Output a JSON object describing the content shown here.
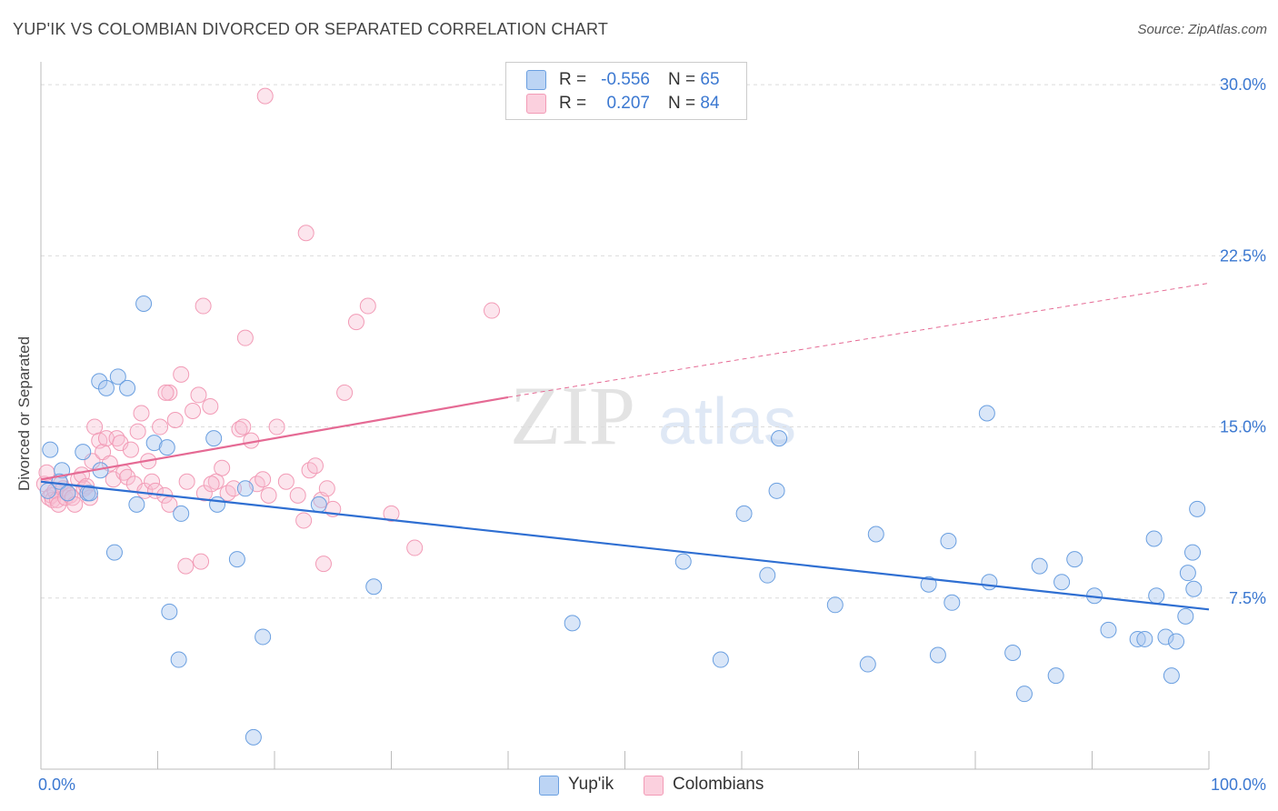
{
  "title": "YUP'IK VS COLOMBIAN DIVORCED OR SEPARATED CORRELATION CHART",
  "source": "Source: ZipAtlas.com",
  "watermark": {
    "zip": "ZIP",
    "atlas": "atlas"
  },
  "legend_top": [
    {
      "r_label": "R =",
      "r_value": "-0.556",
      "n_label": "N =",
      "n_value": "65"
    },
    {
      "r_label": "R =",
      "r_value": "0.207",
      "n_label": "N =",
      "n_value": "84"
    }
  ],
  "legend_bottom": [
    "Yup'ik",
    "Colombians"
  ],
  "chart_data": {
    "type": "scatter",
    "title": "YUP'IK VS COLOMBIAN DIVORCED OR SEPARATED CORRELATION CHART",
    "xlabel": "",
    "ylabel": "Divorced or Separated",
    "xlim": [
      0,
      100
    ],
    "ylim": [
      0,
      31
    ],
    "x_tick_labels": [
      "0.0%",
      "100.0%"
    ],
    "y_ticks": [
      7.5,
      15.0,
      22.5,
      30.0
    ],
    "y_tick_labels": [
      "7.5%",
      "15.0%",
      "22.5%",
      "30.0%"
    ],
    "grid": true,
    "legend_position": "top-center",
    "colors": {
      "Yup'ik": "#6a9fe0",
      "Colombians": "#f29bb6",
      "yupik_line": "#2f6fd2",
      "colombian_line": "#e56a94",
      "tick_label": "#3b78d1"
    },
    "series": [
      {
        "name": "Yup'ik",
        "x": [
          0.6,
          0.8,
          1.8,
          1.6,
          2.3,
          4.0,
          4.2,
          3.6,
          5.0,
          5.1,
          5.6,
          6.3,
          6.6,
          7.4,
          8.2,
          8.8,
          9.7,
          10.8,
          11.0,
          11.8,
          12.0,
          14.8,
          15.1,
          16.8,
          17.5,
          18.2,
          19.0,
          23.8,
          28.5,
          45.5,
          55.0,
          58.2,
          60.2,
          62.2,
          63.0,
          68.0,
          70.8,
          71.5,
          76.0,
          76.8,
          78.0,
          81.2,
          83.2,
          84.2,
          85.5,
          87.4,
          88.5,
          90.2,
          91.4,
          93.9,
          94.5,
          95.3,
          95.5,
          96.3,
          96.8,
          97.2,
          98.0,
          98.6,
          98.2,
          98.7,
          99.0,
          63.2,
          81.0,
          86.9,
          77.7
        ],
        "y": [
          12.2,
          14.0,
          13.1,
          12.6,
          12.1,
          12.1,
          12.1,
          13.9,
          17.0,
          13.1,
          16.7,
          9.5,
          17.2,
          16.7,
          11.6,
          20.4,
          14.3,
          14.1,
          6.9,
          4.8,
          11.2,
          14.5,
          11.6,
          9.2,
          12.3,
          1.4,
          5.8,
          11.6,
          8.0,
          6.4,
          9.1,
          4.8,
          11.2,
          8.5,
          12.2,
          7.2,
          4.6,
          10.3,
          8.1,
          5.0,
          7.3,
          8.2,
          5.1,
          3.3,
          8.9,
          8.2,
          9.2,
          7.6,
          6.1,
          5.7,
          5.7,
          10.1,
          7.6,
          5.8,
          4.1,
          5.6,
          6.7,
          9.5,
          8.6,
          7.9,
          11.4,
          14.5,
          15.6,
          4.1,
          10.0
        ],
        "fit": {
          "x0": 0,
          "y0": 12.6,
          "x1": 100,
          "y1": 7.0
        }
      },
      {
        "name": "Colombians",
        "x": [
          0.3,
          0.5,
          0.7,
          0.9,
          1.0,
          1.2,
          1.4,
          1.5,
          1.7,
          1.9,
          2.1,
          2.3,
          2.5,
          2.7,
          2.9,
          3.2,
          3.5,
          3.7,
          3.9,
          4.2,
          4.4,
          4.6,
          5.0,
          5.3,
          5.6,
          5.9,
          6.2,
          6.5,
          6.8,
          7.1,
          7.4,
          7.7,
          8.0,
          8.3,
          8.6,
          8.9,
          9.2,
          9.5,
          9.8,
          10.2,
          10.6,
          11.0,
          11.5,
          12.0,
          12.5,
          13.0,
          13.5,
          14.0,
          14.5,
          15.0,
          15.5,
          16.0,
          16.5,
          17.0,
          17.5,
          18.0,
          18.5,
          19.0,
          19.5,
          20.2,
          21.0,
          22.0,
          22.5,
          23.0,
          23.5,
          24.0,
          24.5,
          25.0,
          26.0,
          27.0,
          28.0,
          30.0,
          32.0,
          38.6,
          11.0,
          12.4,
          13.9,
          17.3,
          22.7,
          13.7,
          19.2,
          10.7,
          14.6,
          24.2
        ],
        "y": [
          12.5,
          13.0,
          11.9,
          12.0,
          11.8,
          12.2,
          11.8,
          11.6,
          12.5,
          12.3,
          11.9,
          12.1,
          12.0,
          11.9,
          11.6,
          12.7,
          12.9,
          12.3,
          12.4,
          11.9,
          13.5,
          15.0,
          14.4,
          13.9,
          14.5,
          13.4,
          12.7,
          14.5,
          14.3,
          13.0,
          12.8,
          14.0,
          12.5,
          14.8,
          15.6,
          12.2,
          13.5,
          12.6,
          12.2,
          15.0,
          12.0,
          16.5,
          15.3,
          17.3,
          12.6,
          15.7,
          16.4,
          12.1,
          15.9,
          12.6,
          13.2,
          12.1,
          12.3,
          14.9,
          18.9,
          14.4,
          12.5,
          12.7,
          12.0,
          15.0,
          12.6,
          12.0,
          10.9,
          13.1,
          13.3,
          11.8,
          12.3,
          11.4,
          16.5,
          19.6,
          20.3,
          11.2,
          9.7,
          20.1,
          11.6,
          8.9,
          20.3,
          15.0,
          23.5,
          9.1,
          29.5,
          16.5,
          12.5,
          9.0
        ],
        "fit": {
          "x0": 0,
          "y0": 12.7,
          "x1": 40,
          "y1": 16.3,
          "dash_x1": 100,
          "dash_y1": 21.3
        }
      }
    ]
  }
}
